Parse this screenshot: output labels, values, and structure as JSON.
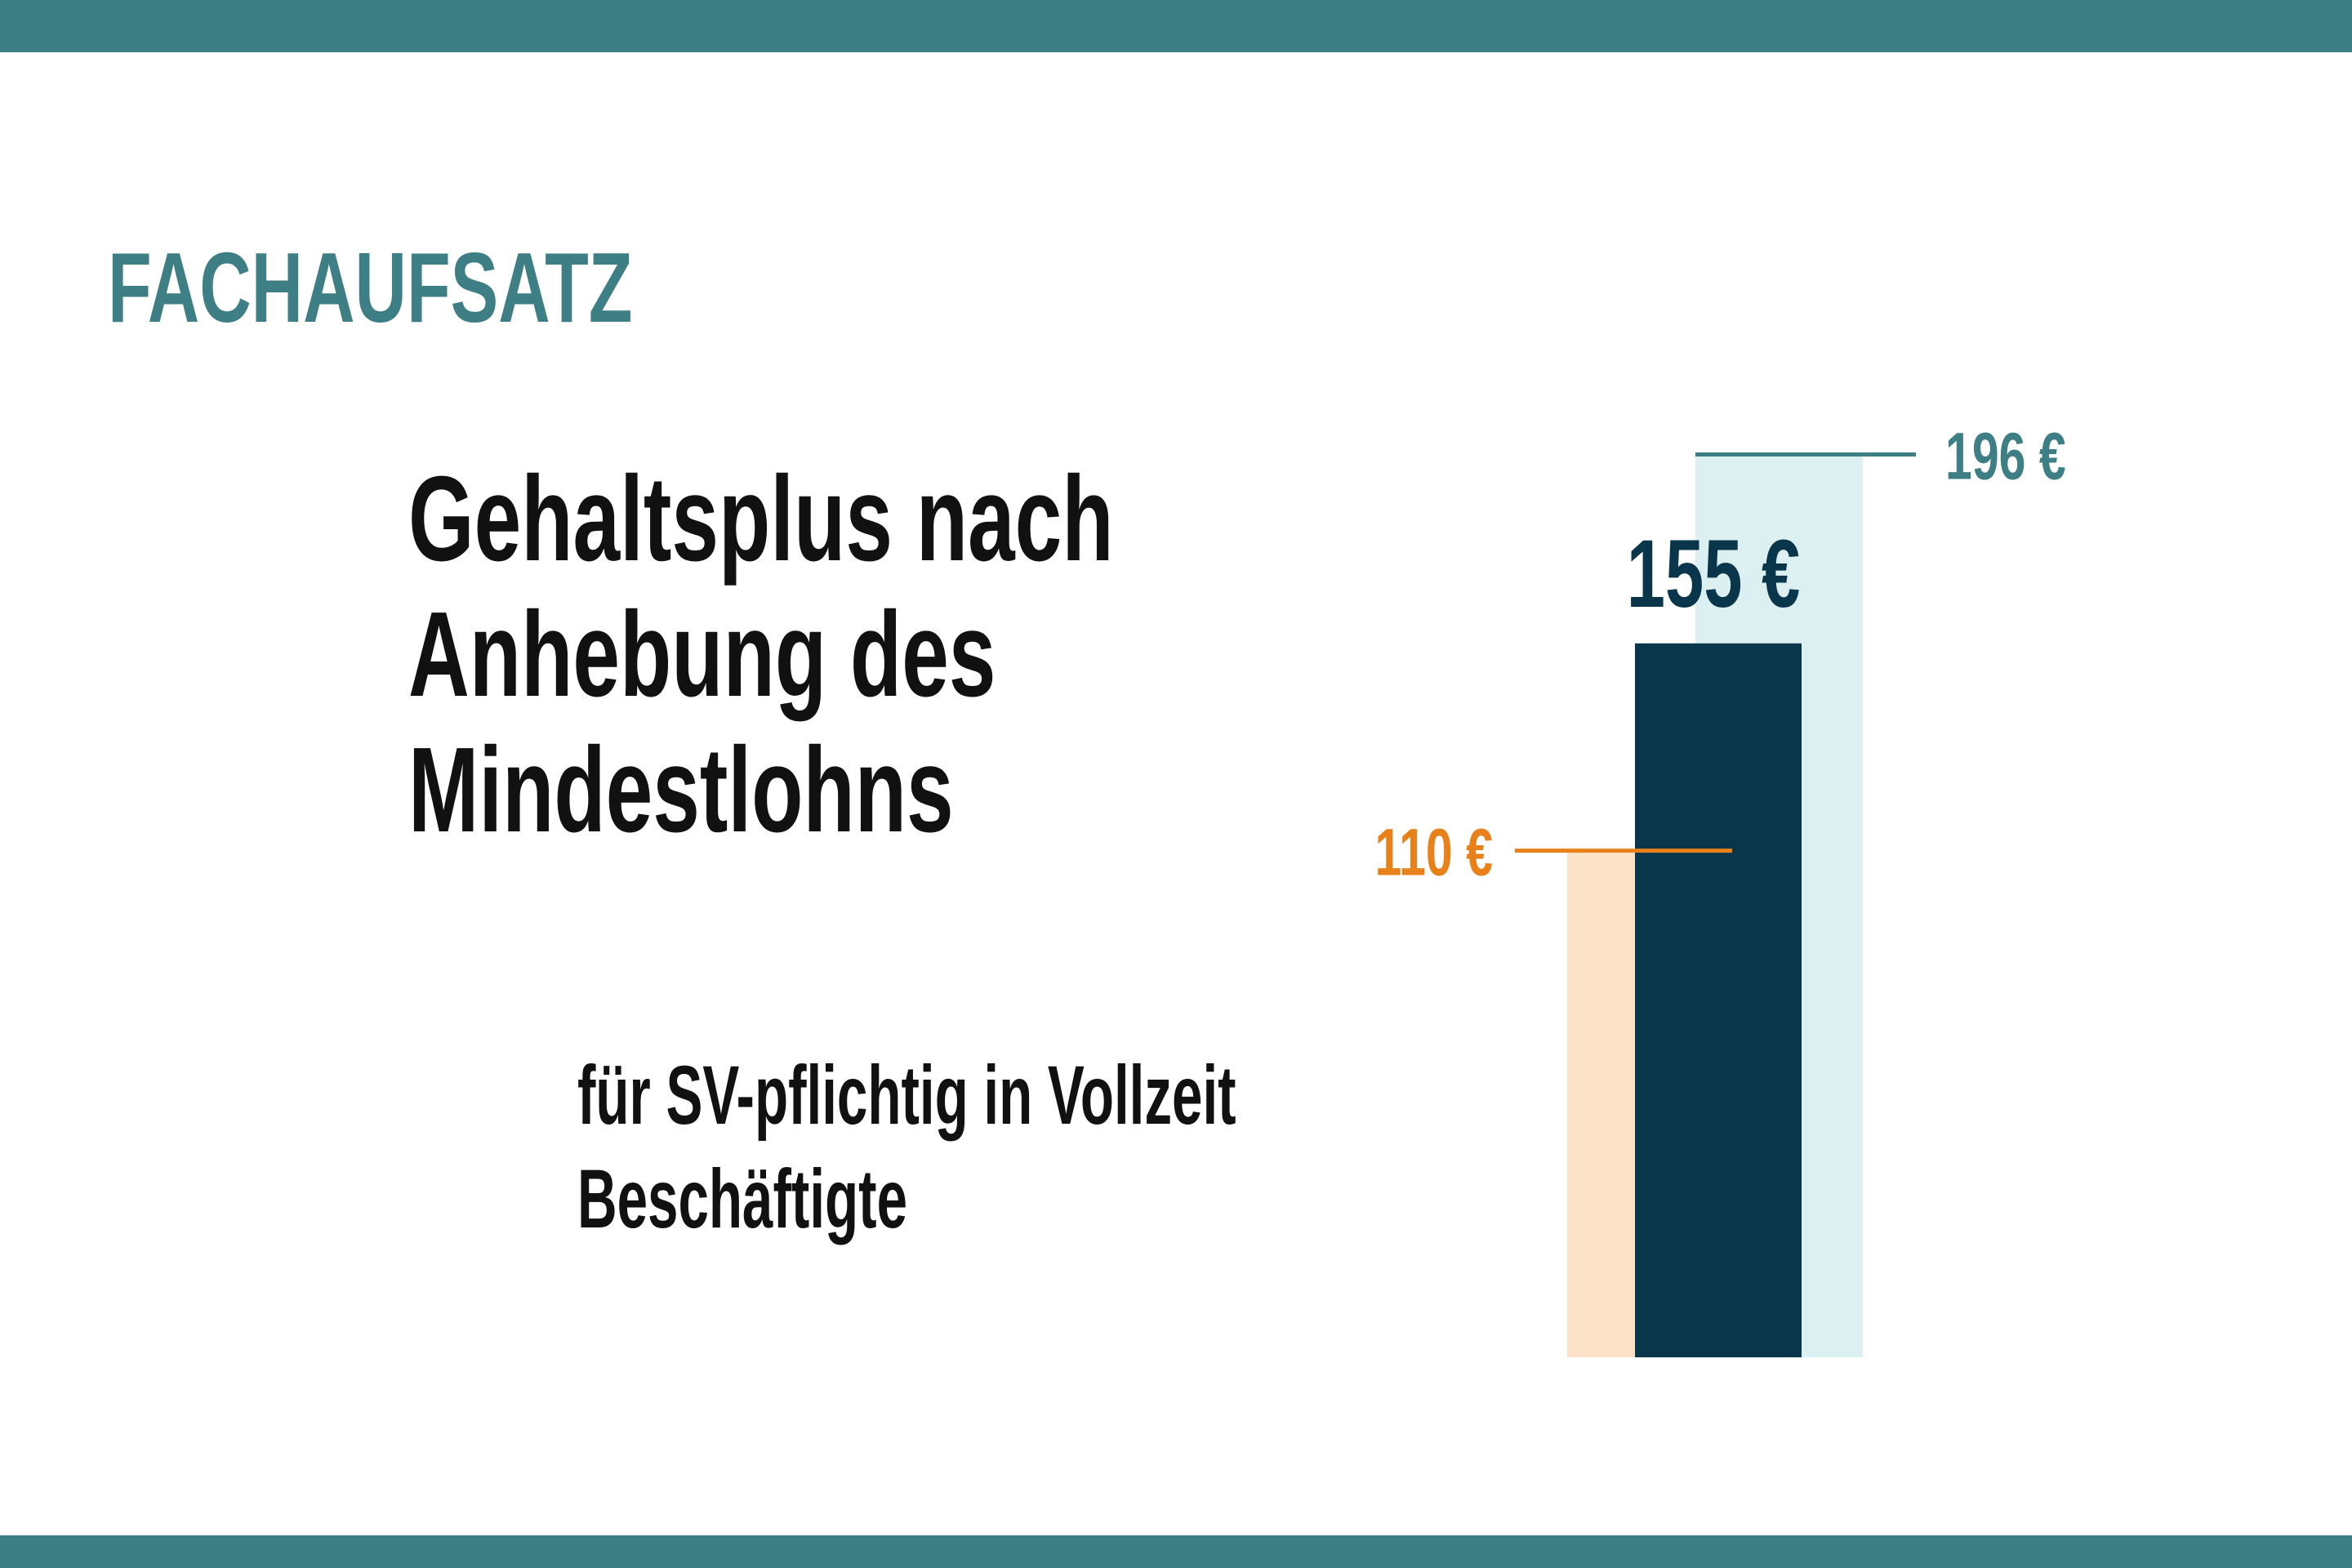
{
  "chart_data": {
    "type": "bar",
    "kicker": "FACHAUFSATZ",
    "title": "Gehaltsplus nach Anhebung des Mindestlohns",
    "subtitle": "für SV-pflichtig in Vollzeit Beschäftigte",
    "categories": [
      null,
      null,
      null
    ],
    "values": [
      110,
      155,
      196
    ],
    "value_labels": [
      "110 €",
      "155 €",
      "196 €"
    ],
    "colors": [
      "#fbe2c8",
      "#0a364b",
      "#dcf0f2"
    ],
    "label_colors": [
      "#e8811a",
      "#0a364b",
      "#3e7f86"
    ]
  }
}
